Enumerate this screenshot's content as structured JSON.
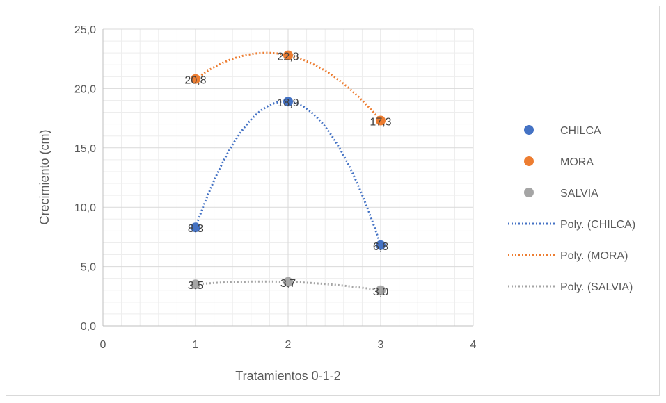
{
  "chart_data": {
    "type": "scatter",
    "title": "",
    "xlabel": "Tratamientos 0-1-2",
    "ylabel": "Crecimiento (cm)",
    "xlim": [
      0,
      4
    ],
    "ylim": [
      0,
      25
    ],
    "xticks": [
      0,
      1,
      2,
      3,
      4
    ],
    "yticks": [
      0,
      5,
      10,
      15,
      20,
      25
    ],
    "ytick_labels": [
      "0,0",
      "5,0",
      "10,0",
      "15,0",
      "20,0",
      "25,0"
    ],
    "grid": true,
    "legend_position": "right",
    "series": [
      {
        "name": "CHILCA",
        "color": "#4472C4",
        "x": [
          1,
          2,
          3
        ],
        "y": [
          8.3,
          18.9,
          6.8
        ],
        "labels": [
          "8,3",
          "18,9",
          "6,8"
        ]
      },
      {
        "name": "MORA",
        "color": "#ED7D31",
        "x": [
          1,
          2,
          3
        ],
        "y": [
          20.8,
          22.8,
          17.3
        ],
        "labels": [
          "20,8",
          "22,8",
          "17,3"
        ]
      },
      {
        "name": "SALVIA",
        "color": "#A5A5A5",
        "x": [
          1,
          2,
          3
        ],
        "y": [
          3.5,
          3.7,
          3.0
        ],
        "labels": [
          "3,5",
          "3,7",
          "3,0"
        ]
      }
    ],
    "trendlines": [
      {
        "name": "Poly. (CHILCA)",
        "series": "CHILCA",
        "color": "#4472C4",
        "order": 2
      },
      {
        "name": "Poly. (MORA)",
        "series": "MORA",
        "color": "#ED7D31",
        "order": 2
      },
      {
        "name": "Poly. (SALVIA)",
        "series": "SALVIA",
        "color": "#A5A5A5",
        "order": 2
      }
    ]
  }
}
